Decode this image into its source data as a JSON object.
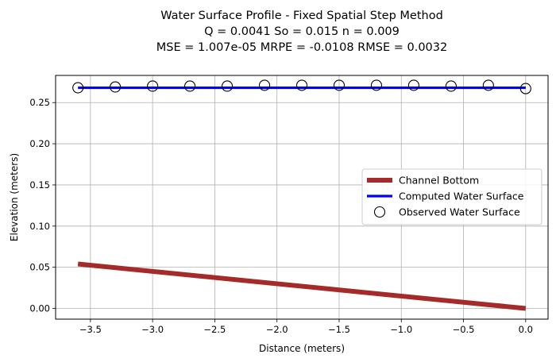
{
  "chart_data": {
    "type": "line",
    "title_lines": [
      "Water Surface Profile - Fixed Spatial Step Method",
      "Q = 0.0041 So = 0.015 n = 0.009",
      "MSE = 1.007e-05 MRPE = -0.0108 RMSE = 0.0032"
    ],
    "xlabel": "Distance (meters)",
    "ylabel": "Elevation (meters)",
    "xlim": [
      -3.78,
      0.18
    ],
    "ylim": [
      -0.013,
      0.283
    ],
    "xticks": [
      -3.5,
      -3.0,
      -2.5,
      -2.0,
      -1.5,
      -1.0,
      -0.5,
      0.0
    ],
    "xtick_labels": [
      "−3.5",
      "−3.0",
      "−2.5",
      "−2.0",
      "−1.5",
      "−1.0",
      "−0.5",
      "0.0"
    ],
    "yticks": [
      0.0,
      0.05,
      0.1,
      0.15,
      0.2,
      0.25
    ],
    "ytick_labels": [
      "0.00",
      "0.05",
      "0.10",
      "0.15",
      "0.20",
      "0.25"
    ],
    "grid": true,
    "legend_position": "center-right",
    "series": [
      {
        "name": "Channel Bottom",
        "style": "line",
        "color": "#a52a2a",
        "x": [
          -3.6,
          0.0
        ],
        "y": [
          0.054,
          0.0
        ]
      },
      {
        "name": "Computed Water Surface",
        "style": "line",
        "color": "#0000ff",
        "x": [
          -3.6,
          -3.3,
          -3.0,
          -2.7,
          -2.4,
          -2.1,
          -1.8,
          -1.5,
          -1.2,
          -0.9,
          -0.6,
          -0.3,
          0.0
        ],
        "y": [
          0.268,
          0.268,
          0.268,
          0.268,
          0.268,
          0.268,
          0.268,
          0.268,
          0.268,
          0.268,
          0.268,
          0.268,
          0.268
        ]
      },
      {
        "name": "Observed Water Surface",
        "style": "marker",
        "color": "#000000",
        "x": [
          -3.6,
          -3.3,
          -3.0,
          -2.7,
          -2.4,
          -2.1,
          -1.8,
          -1.5,
          -1.2,
          -0.9,
          -0.6,
          -0.3,
          0.0
        ],
        "y": [
          0.268,
          0.269,
          0.27,
          0.27,
          0.27,
          0.271,
          0.271,
          0.271,
          0.271,
          0.271,
          0.27,
          0.271,
          0.267
        ]
      }
    ]
  }
}
